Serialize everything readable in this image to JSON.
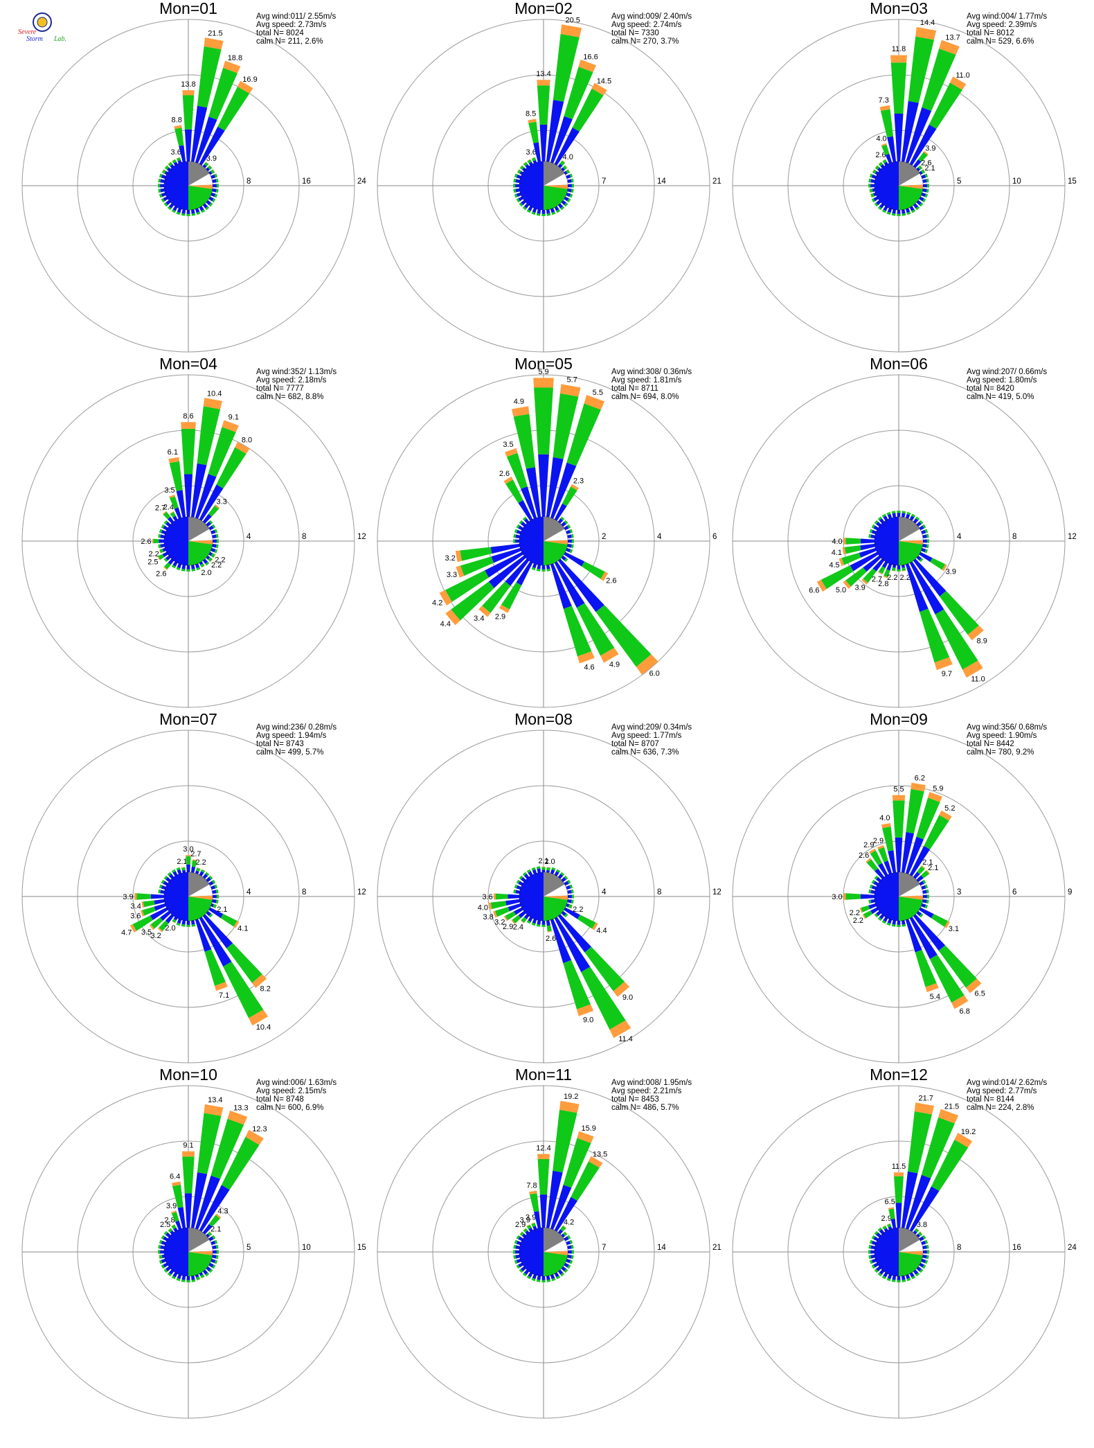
{
  "logo": {
    "line1": "Severe",
    "line2": "Storm",
    "line3": "Lab."
  },
  "colors": {
    "blue": "#0a14f0",
    "green": "#10c818",
    "orange": "#ff9c3c",
    "red": "#e8141e",
    "gray": "#808080",
    "ring": "#9a9a9a",
    "axis": "#8a8a8a"
  },
  "chart_data": [
    {
      "type": "polar-bar",
      "title": "Mon=01",
      "stats": [
        "Avg wind:011/ 2.55m/s",
        "Avg speed: 2.73m/s",
        "total N=       8024",
        "calm N=    211,   2.6%"
      ],
      "rings": [
        8,
        16,
        24
      ],
      "petals": [
        {
          "dir": 340,
          "value": 3.6,
          "label": "3.6"
        },
        {
          "dir": 350,
          "value": 8.8,
          "label": "8.8"
        },
        {
          "dir": 0,
          "value": 13.8,
          "label": "13.8"
        },
        {
          "dir": 10,
          "value": 21.5,
          "label": "21.5"
        },
        {
          "dir": 20,
          "value": 18.8,
          "label": "18.8"
        },
        {
          "dir": 30,
          "value": 16.9,
          "label": "16.9"
        },
        {
          "dir": 40,
          "value": 3.9,
          "label": "3.9"
        },
        {
          "dir": 50,
          "value": 2.2
        },
        {
          "dir": 60,
          "value": 1.7
        },
        {
          "dir": 300,
          "value": 2.0
        },
        {
          "dir": 310,
          "value": 2.1
        },
        {
          "dir": 320,
          "value": 2.3
        },
        {
          "dir": 330,
          "value": 2.6
        }
      ]
    },
    {
      "type": "polar-bar",
      "title": "Mon=02",
      "stats": [
        "Avg wind:009/ 2.40m/s",
        "Avg speed: 2.74m/s",
        "total N=       7330",
        "calm N=    270,   3.7%"
      ],
      "rings": [
        7,
        14,
        21
      ],
      "petals": [
        {
          "dir": 340,
          "value": 3.6,
          "label": "3.6"
        },
        {
          "dir": 350,
          "value": 8.5,
          "label": "8.5"
        },
        {
          "dir": 0,
          "value": 13.4,
          "label": "13.4"
        },
        {
          "dir": 10,
          "value": 20.5,
          "label": "20.5"
        },
        {
          "dir": 20,
          "value": 16.6,
          "label": "16.6"
        },
        {
          "dir": 30,
          "value": 14.5,
          "label": "14.5"
        },
        {
          "dir": 40,
          "value": 4.0,
          "label": "4.0"
        },
        {
          "dir": 50,
          "value": 2.1
        },
        {
          "dir": 60,
          "value": 1.6
        },
        {
          "dir": 300,
          "value": 1.8
        },
        {
          "dir": 310,
          "value": 1.9
        },
        {
          "dir": 320,
          "value": 2.2
        },
        {
          "dir": 330,
          "value": 2.5
        }
      ]
    },
    {
      "type": "polar-bar",
      "title": "Mon=03",
      "stats": [
        "Avg wind:004/ 1.77m/s",
        "Avg speed: 2.39m/s",
        "total N=       8012",
        "calm N=    529,   6.6%"
      ],
      "rings": [
        5,
        10,
        15
      ],
      "petals": [
        {
          "dir": 330,
          "value": 2.6,
          "label": "2.6"
        },
        {
          "dir": 340,
          "value": 4.0,
          "label": "4.0"
        },
        {
          "dir": 350,
          "value": 7.3,
          "label": "7.3"
        },
        {
          "dir": 0,
          "value": 11.8,
          "label": "11.8"
        },
        {
          "dir": 10,
          "value": 14.4,
          "label": "14.4"
        },
        {
          "dir": 20,
          "value": 13.7,
          "label": "13.7"
        },
        {
          "dir": 30,
          "value": 11.0,
          "label": "11.0"
        },
        {
          "dir": 40,
          "value": 3.9,
          "label": "3.9"
        },
        {
          "dir": 50,
          "value": 2.6,
          "label": "2.6"
        },
        {
          "dir": 60,
          "value": 2.1,
          "label": "2.1"
        },
        {
          "dir": 300,
          "value": 2.2
        },
        {
          "dir": 310,
          "value": 2.2
        },
        {
          "dir": 320,
          "value": 2.4
        },
        {
          "dir": 250,
          "value": 2.0
        },
        {
          "dir": 260,
          "value": 2.0
        }
      ]
    },
    {
      "type": "polar-bar",
      "title": "Mon=04",
      "stats": [
        "Avg wind:352/ 1.13m/s",
        "Avg speed: 2.18m/s",
        "total N=       7777",
        "calm N=    682,   8.8%"
      ],
      "rings": [
        4,
        8,
        12
      ],
      "petals": [
        {
          "dir": 320,
          "value": 2.7,
          "label": "2.7"
        },
        {
          "dir": 330,
          "value": 2.4,
          "label": "2.4"
        },
        {
          "dir": 340,
          "value": 3.5,
          "label": "3.5"
        },
        {
          "dir": 350,
          "value": 6.1,
          "label": "6.1"
        },
        {
          "dir": 0,
          "value": 8.6,
          "label": "8.6"
        },
        {
          "dir": 10,
          "value": 10.4,
          "label": "10.4"
        },
        {
          "dir": 20,
          "value": 9.1,
          "label": "9.1"
        },
        {
          "dir": 30,
          "value": 8.0,
          "label": "8.0"
        },
        {
          "dir": 40,
          "value": 3.3,
          "label": "3.3"
        },
        {
          "dir": 270,
          "value": 2.6,
          "label": "2.6"
        },
        {
          "dir": 250,
          "value": 2.2,
          "label": "2.2"
        },
        {
          "dir": 240,
          "value": 2.5,
          "label": "2.5"
        },
        {
          "dir": 220,
          "value": 2.6,
          "label": "2.6"
        },
        {
          "dir": 150,
          "value": 2.0,
          "label": "2.0"
        },
        {
          "dir": 130,
          "value": 2.2,
          "label": "2.2"
        },
        {
          "dir": 120,
          "value": 2.2,
          "label": "2.2"
        }
      ]
    },
    {
      "type": "polar-bar",
      "title": "Mon=05",
      "stats": [
        "Avg wind:308/ 0.36m/s",
        "Avg speed: 1.81m/s",
        "total N=       8711",
        "calm N=    694,   8.0%"
      ],
      "rings": [
        2,
        4,
        6
      ],
      "petals": [
        {
          "dir": 330,
          "value": 2.6,
          "label": "2.6"
        },
        {
          "dir": 340,
          "value": 3.5,
          "label": "3.5"
        },
        {
          "dir": 350,
          "value": 4.9,
          "label": "4.9"
        },
        {
          "dir": 0,
          "value": 5.9,
          "label": "5.9"
        },
        {
          "dir": 10,
          "value": 5.7,
          "label": "5.7"
        },
        {
          "dir": 20,
          "value": 5.5,
          "label": "5.5"
        },
        {
          "dir": 30,
          "value": 2.3,
          "label": "2.3"
        },
        {
          "dir": 260,
          "value": 3.2,
          "label": "3.2"
        },
        {
          "dir": 250,
          "value": 3.3,
          "label": "3.3"
        },
        {
          "dir": 240,
          "value": 4.2,
          "label": "4.2"
        },
        {
          "dir": 230,
          "value": 4.4,
          "label": "4.4"
        },
        {
          "dir": 220,
          "value": 3.4,
          "label": "3.4"
        },
        {
          "dir": 210,
          "value": 2.9,
          "label": "2.9"
        },
        {
          "dir": 160,
          "value": 4.6,
          "label": "4.6"
        },
        {
          "dir": 150,
          "value": 4.9,
          "label": "4.9"
        },
        {
          "dir": 140,
          "value": 6.0,
          "label": "6.0"
        },
        {
          "dir": 120,
          "value": 2.6,
          "label": "2.6"
        }
      ]
    },
    {
      "type": "polar-bar",
      "title": "Mon=06",
      "stats": [
        "Avg wind:207/ 0.66m/s",
        "Avg speed: 1.80m/s",
        "total N=       8420",
        "calm N=    419,   5.0%"
      ],
      "rings": [
        4,
        8,
        12
      ],
      "petals": [
        {
          "dir": 270,
          "value": 4.0,
          "label": "4.0"
        },
        {
          "dir": 260,
          "value": 4.1,
          "label": "4.1"
        },
        {
          "dir": 250,
          "value": 4.5,
          "label": "4.5"
        },
        {
          "dir": 240,
          "value": 6.6,
          "label": "6.6"
        },
        {
          "dir": 230,
          "value": 5.0,
          "label": "5.0"
        },
        {
          "dir": 220,
          "value": 3.9,
          "label": "3.9"
        },
        {
          "dir": 210,
          "value": 2.7,
          "label": "2.7"
        },
        {
          "dir": 200,
          "value": 2.8,
          "label": "2.8"
        },
        {
          "dir": 190,
          "value": 2.2,
          "label": "2.2"
        },
        {
          "dir": 170,
          "value": 2.2,
          "label": "2.2"
        },
        {
          "dir": 160,
          "value": 9.7,
          "label": "9.7"
        },
        {
          "dir": 150,
          "value": 11.0,
          "label": "11.0"
        },
        {
          "dir": 140,
          "value": 8.9,
          "label": "8.9"
        },
        {
          "dir": 120,
          "value": 3.9,
          "label": "3.9"
        }
      ]
    },
    {
      "type": "polar-bar",
      "title": "Mon=07",
      "stats": [
        "Avg wind:236/ 0.28m/s",
        "Avg speed: 1.94m/s",
        "total N=       8743",
        "calm N=    499,   5.7%"
      ],
      "rings": [
        4,
        8,
        12
      ],
      "petals": [
        {
          "dir": 350,
          "value": 2.1,
          "label": "2.1"
        },
        {
          "dir": 0,
          "value": 3.0,
          "label": "3.0"
        },
        {
          "dir": 10,
          "value": 2.7,
          "label": "2.7"
        },
        {
          "dir": 20,
          "value": 2.2,
          "label": "2.2"
        },
        {
          "dir": 270,
          "value": 3.9,
          "label": "3.9"
        },
        {
          "dir": 260,
          "value": 3.4,
          "label": "3.4"
        },
        {
          "dir": 250,
          "value": 3.6,
          "label": "3.6"
        },
        {
          "dir": 240,
          "value": 4.7,
          "label": "4.7"
        },
        {
          "dir": 230,
          "value": 3.5,
          "label": "3.5"
        },
        {
          "dir": 220,
          "value": 3.2,
          "label": "3.2"
        },
        {
          "dir": 210,
          "value": 2.0,
          "label": "2.0"
        },
        {
          "dir": 160,
          "value": 7.1,
          "label": "7.1"
        },
        {
          "dir": 150,
          "value": 10.4,
          "label": "10.4"
        },
        {
          "dir": 140,
          "value": 8.2,
          "label": "8.2"
        },
        {
          "dir": 120,
          "value": 4.1,
          "label": "4.1"
        },
        {
          "dir": 110,
          "value": 2.1,
          "label": "2.1"
        }
      ]
    },
    {
      "type": "polar-bar",
      "title": "Mon=08",
      "stats": [
        "Avg wind:209/ 0.34m/s",
        "Avg speed: 1.77m/s",
        "total N=       8707",
        "calm N=    636,   7.3%"
      ],
      "rings": [
        4,
        8,
        12
      ],
      "petals": [
        {
          "dir": 0,
          "value": 2.1,
          "label": "2.1"
        },
        {
          "dir": 10,
          "value": 2.0,
          "label": "2.0"
        },
        {
          "dir": 270,
          "value": 3.6,
          "label": "3.6"
        },
        {
          "dir": 260,
          "value": 4.0,
          "label": "4.0"
        },
        {
          "dir": 250,
          "value": 3.8,
          "label": "3.8"
        },
        {
          "dir": 240,
          "value": 3.2,
          "label": "3.2"
        },
        {
          "dir": 230,
          "value": 2.9,
          "label": "2.9"
        },
        {
          "dir": 220,
          "value": 2.4,
          "label": "2.4"
        },
        {
          "dir": 170,
          "value": 2.6,
          "label": "2.6"
        },
        {
          "dir": 160,
          "value": 9.0,
          "label": "9.0"
        },
        {
          "dir": 150,
          "value": 11.4,
          "label": "11.4"
        },
        {
          "dir": 140,
          "value": 9.0,
          "label": "9.0"
        },
        {
          "dir": 120,
          "value": 4.4,
          "label": "4.4"
        },
        {
          "dir": 110,
          "value": 2.2,
          "label": "2.2"
        }
      ]
    },
    {
      "type": "polar-bar",
      "title": "Mon=09",
      "stats": [
        "Avg wind:356/ 0.68m/s",
        "Avg speed: 1.90m/s",
        "total N=       8442",
        "calm N=    780,   9.2%"
      ],
      "rings": [
        3,
        6,
        9
      ],
      "petals": [
        {
          "dir": 320,
          "value": 2.6,
          "label": "2.6"
        },
        {
          "dir": 330,
          "value": 2.9,
          "label": "2.9"
        },
        {
          "dir": 340,
          "value": 2.9,
          "label": "2.9"
        },
        {
          "dir": 350,
          "value": 4.0,
          "label": "4.0"
        },
        {
          "dir": 0,
          "value": 5.5,
          "label": "5.5"
        },
        {
          "dir": 10,
          "value": 6.2,
          "label": "6.2"
        },
        {
          "dir": 20,
          "value": 5.9,
          "label": "5.9"
        },
        {
          "dir": 30,
          "value": 5.2,
          "label": "5.2"
        },
        {
          "dir": 40,
          "value": 2.1,
          "label": "2.1"
        },
        {
          "dir": 50,
          "value": 2.1,
          "label": "2.1"
        },
        {
          "dir": 270,
          "value": 3.0,
          "label": "3.0"
        },
        {
          "dir": 250,
          "value": 2.2,
          "label": "2.2"
        },
        {
          "dir": 240,
          "value": 2.2,
          "label": "2.2"
        },
        {
          "dir": 160,
          "value": 5.4,
          "label": "5.4"
        },
        {
          "dir": 150,
          "value": 6.8,
          "label": "6.8"
        },
        {
          "dir": 140,
          "value": 6.5,
          "label": "6.5"
        },
        {
          "dir": 120,
          "value": 3.1,
          "label": "3.1"
        }
      ]
    },
    {
      "type": "polar-bar",
      "title": "Mon=10",
      "stats": [
        "Avg wind:006/ 1.63m/s",
        "Avg speed: 2.15m/s",
        "total N=       8748",
        "calm N=    600,   6.9%"
      ],
      "rings": [
        5,
        10,
        15
      ],
      "petals": [
        {
          "dir": 330,
          "value": 2.8,
          "label": "2.8"
        },
        {
          "dir": 340,
          "value": 3.9,
          "label": "3.9"
        },
        {
          "dir": 350,
          "value": 6.4,
          "label": "6.4"
        },
        {
          "dir": 0,
          "value": 9.1,
          "label": "9.1"
        },
        {
          "dir": 10,
          "value": 13.4,
          "label": "13.4"
        },
        {
          "dir": 20,
          "value": 13.3,
          "label": "13.3"
        },
        {
          "dir": 30,
          "value": 12.3,
          "label": "12.3"
        },
        {
          "dir": 40,
          "value": 4.3,
          "label": "4.3"
        },
        {
          "dir": 50,
          "value": 2.1,
          "label": "2.1"
        },
        {
          "dir": 320,
          "value": 2.5,
          "label": "2.5"
        },
        {
          "dir": 160,
          "value": 2.7
        },
        {
          "dir": 150,
          "value": 2.4
        },
        {
          "dir": 260,
          "value": 1.8
        }
      ]
    },
    {
      "type": "polar-bar",
      "title": "Mon=11",
      "stats": [
        "Avg wind:008/ 1.95m/s",
        "Avg speed: 2.21m/s",
        "total N=       8453",
        "calm N=    486,   5.7%"
      ],
      "rings": [
        7,
        14,
        21
      ],
      "petals": [
        {
          "dir": 320,
          "value": 2.9,
          "label": "2.9"
        },
        {
          "dir": 330,
          "value": 3.9,
          "label": "3.9"
        },
        {
          "dir": 340,
          "value": 3.9,
          "label": "3.9"
        },
        {
          "dir": 350,
          "value": 7.8,
          "label": "7.8"
        },
        {
          "dir": 0,
          "value": 12.4,
          "label": "12.4"
        },
        {
          "dir": 10,
          "value": 19.2,
          "label": "19.2"
        },
        {
          "dir": 20,
          "value": 15.9,
          "label": "15.9"
        },
        {
          "dir": 30,
          "value": 13.5,
          "label": "13.5"
        },
        {
          "dir": 40,
          "value": 4.2,
          "label": "4.2"
        },
        {
          "dir": 50,
          "value": 2.0
        },
        {
          "dir": 310,
          "value": 2.2
        }
      ]
    },
    {
      "type": "polar-bar",
      "title": "Mon=12",
      "stats": [
        "Avg wind:014/ 2.62m/s",
        "Avg speed: 2.77m/s",
        "total N=       8144",
        "calm N=    224,   2.8%"
      ],
      "rings": [
        8,
        16,
        24
      ],
      "petals": [
        {
          "dir": 340,
          "value": 2.9,
          "label": "2.9"
        },
        {
          "dir": 350,
          "value": 6.5,
          "label": "6.5"
        },
        {
          "dir": 0,
          "value": 11.5,
          "label": "11.5"
        },
        {
          "dir": 10,
          "value": 21.7,
          "label": "21.7"
        },
        {
          "dir": 20,
          "value": 21.5,
          "label": "21.5"
        },
        {
          "dir": 30,
          "value": 19.2,
          "label": "19.2"
        },
        {
          "dir": 40,
          "value": 3.8,
          "label": "3.8"
        },
        {
          "dir": 50,
          "value": 2.0
        },
        {
          "dir": 330,
          "value": 2.0
        }
      ]
    }
  ]
}
